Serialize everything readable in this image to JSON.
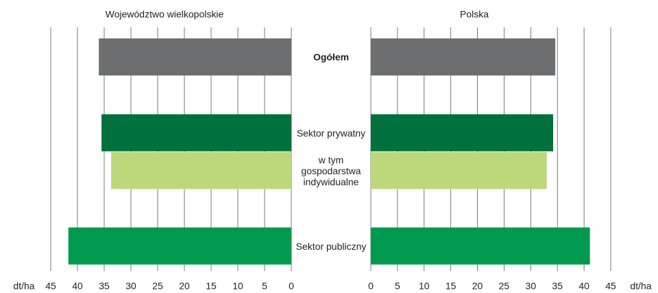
{
  "chart_data": [
    {
      "type": "bar",
      "orientation": "horizontal",
      "x_inverted": true,
      "title": "Województwo wielkopolskie",
      "xlabel": "dt/ha",
      "categories": [
        "Ogółem",
        "Sektor prywatny",
        "w tym gospodarstwa indywidualne",
        "Sektor publiczny"
      ],
      "values": [
        36,
        35.5,
        33.7,
        41.7
      ],
      "colors": [
        "#6d6e70",
        "#00703c",
        "#bcd87a",
        "#009a4e"
      ],
      "xlim": [
        0,
        45
      ],
      "xticks": [
        0,
        5,
        10,
        15,
        20,
        25,
        30,
        35,
        40,
        45
      ],
      "grid": true
    },
    {
      "type": "bar",
      "orientation": "horizontal",
      "x_inverted": false,
      "title": "Polska",
      "xlabel": "dt/ha",
      "values": [
        34.6,
        34.2,
        33.0,
        41.1
      ],
      "colors": [
        "#6d6e70",
        "#00703c",
        "#bcd87a",
        "#009a4e"
      ],
      "xlim": [
        0,
        45
      ],
      "xticks": [
        0,
        5,
        10,
        15,
        20,
        25,
        30,
        35,
        40,
        45
      ],
      "grid": true
    }
  ]
}
